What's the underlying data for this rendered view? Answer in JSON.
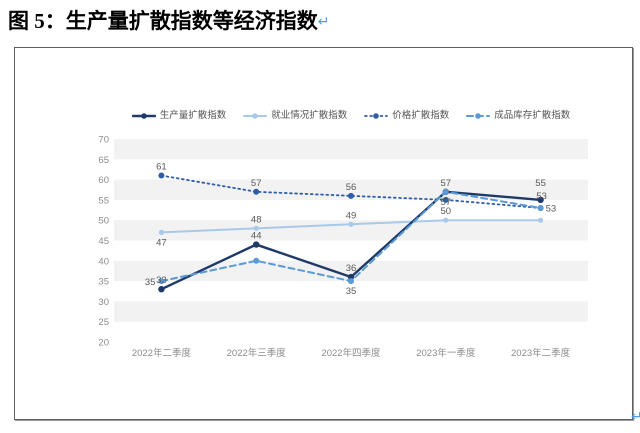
{
  "document": {
    "figure_title": "图 5：生产量扩散指数等经济指数",
    "paragraph_mark": "↵"
  },
  "chart_data": {
    "type": "line",
    "title": "",
    "categories": [
      "2022年二季度",
      "2022年三季度",
      "2022年四季度",
      "2023年一季度",
      "2023年二季度"
    ],
    "ylim": [
      20,
      70
    ],
    "yticks": [
      20,
      25,
      30,
      35,
      40,
      45,
      50,
      55,
      60,
      65,
      70
    ],
    "grid": "horizontal-zebra-bands",
    "band_color": "#f2f2f2",
    "legend_position": "top-center",
    "axis_label_color": "#8c8c8c",
    "data_label_color": "#595959",
    "series": [
      {
        "name": "生产量扩散指数",
        "color": "#1f3a68",
        "line_style": "solid",
        "line_width": 2.4,
        "marker_radius": 3.2,
        "z": 3,
        "values": [
          33,
          44,
          36,
          57,
          55
        ],
        "labels": [
          {
            "t": "33",
            "pos": "above"
          },
          {
            "t": "44",
            "pos": "above"
          },
          {
            "t": "36",
            "pos": "above"
          },
          {
            "t": "57",
            "pos": "above"
          },
          {
            "t": "55",
            "pos": "above-high"
          }
        ]
      },
      {
        "name": "就业情况扩散指数",
        "color": "#a9c9e9",
        "line_style": "solid",
        "line_width": 2,
        "marker_radius": 2.6,
        "z": 1,
        "values": [
          47,
          48,
          49,
          50,
          50
        ],
        "labels": [
          {
            "t": "47",
            "pos": "below"
          },
          {
            "t": "48",
            "pos": "above"
          },
          {
            "t": "49",
            "pos": "above"
          },
          {
            "t": "50",
            "pos": "above"
          },
          null
        ]
      },
      {
        "name": "价格扩散指数",
        "color": "#2f5da6",
        "line_style": "dotted",
        "line_width": 1.8,
        "marker_radius": 3,
        "z": 2,
        "values": [
          61,
          57,
          56,
          55,
          53
        ],
        "labels": [
          {
            "t": "61",
            "pos": "above"
          },
          {
            "t": "57",
            "pos": "above"
          },
          {
            "t": "56",
            "pos": "above"
          },
          null,
          {
            "t": "53",
            "pos": "right"
          }
        ]
      },
      {
        "name": "成品库存扩散指数",
        "color": "#5b9bd5",
        "line_style": "dashed",
        "line_width": 2,
        "marker_radius": 3,
        "z": 4,
        "values": [
          35,
          40,
          35,
          57,
          53
        ],
        "labels": [
          {
            "t": "35",
            "pos": "left"
          },
          null,
          {
            "t": "35",
            "pos": "below"
          },
          {
            "t": "57",
            "pos": "below"
          },
          {
            "t": "53",
            "pos": "above2"
          }
        ]
      }
    ]
  }
}
